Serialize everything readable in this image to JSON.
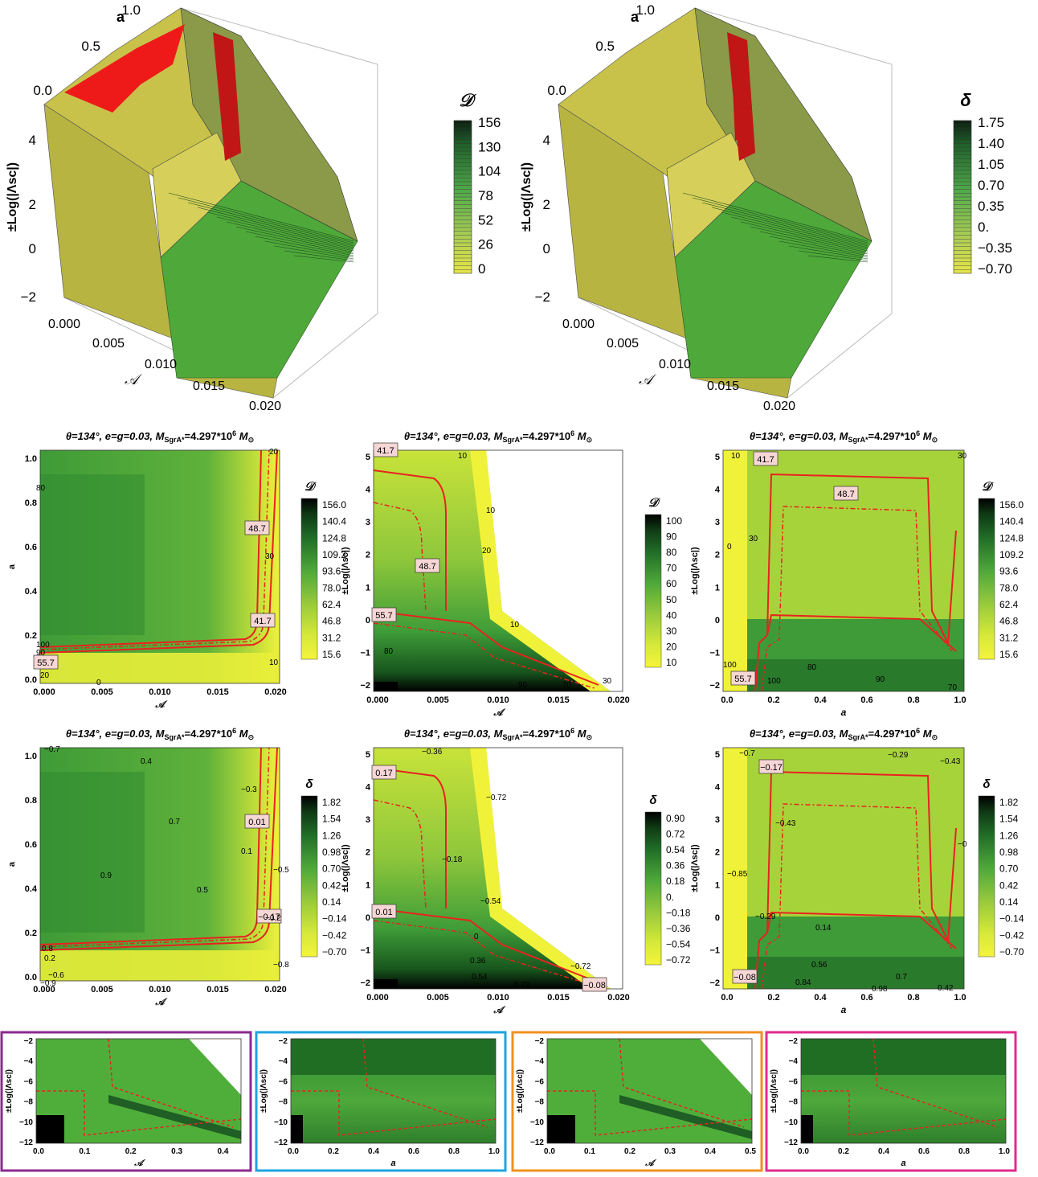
{
  "colors": {
    "yellow": "#f2f23a",
    "lightgreen": "#a7d63a",
    "green": "#4fae3a",
    "darkgreen": "#1f6e24",
    "contour_red": "#e8231f",
    "box_purple": "#8b2a8e",
    "box_cyan": "#1ea4e0",
    "box_orange": "#f0901e",
    "box_magenta": "#e02a8c",
    "label_bg": "#f7d6d6"
  },
  "chart_data": [
    {
      "id": "p3d_D",
      "type": "surface3d",
      "axis_labels": {
        "a": "a",
        "z": "±Log(|Λsc|)",
        "x": "𝒜"
      },
      "a_ticks": [
        "1.0",
        "0.5",
        "0.0"
      ],
      "z_ticks": [
        "4",
        "2",
        "0",
        "−2"
      ],
      "x_ticks": [
        "0.000",
        "0.005",
        "0.010",
        "0.015",
        "0.020"
      ],
      "legend_title": "𝒟",
      "legend_ticks": [
        "156",
        "130",
        "104",
        "78",
        "52",
        "26",
        "0"
      ]
    },
    {
      "id": "p3d_delta",
      "type": "surface3d",
      "axis_labels": {
        "a": "a",
        "z": "±Log(|Λsc|)",
        "x": "𝒜"
      },
      "a_ticks": [
        "1.0",
        "0.5",
        "0.0"
      ],
      "z_ticks": [
        "4",
        "2",
        "0",
        "−2"
      ],
      "x_ticks": [
        "0.000",
        "0.005",
        "0.010",
        "0.015",
        "0.020"
      ],
      "legend_title": "δ",
      "legend_ticks": [
        "1.75",
        "1.40",
        "1.05",
        "0.70",
        "0.35",
        "0.",
        "−0.35",
        "−0.70"
      ]
    },
    {
      "id": "c1",
      "type": "heatmap",
      "title": "θ=134°, e=g=0.03, M",
      "title_sub": "SgrA*",
      "title_rest": "=4.297*10",
      "title_sup": "6",
      "title_end": "M",
      "title_sun": "⊙",
      "xlabel": "𝒜",
      "ylabel": "a",
      "xticks": [
        "0.000",
        "0.005",
        "0.010",
        "0.015",
        "0.020"
      ],
      "yticks": [
        "0.0",
        "0.2",
        "0.4",
        "0.6",
        "0.8",
        "1.0"
      ],
      "legend_title": "𝒟",
      "legend_ticks": [
        "156.0",
        "140.4",
        "124.8",
        "109.2",
        "93.6",
        "78.0",
        "62.4",
        "46.8",
        "31.2",
        "15.6"
      ],
      "contour_labels": [
        "48.7",
        "41.7",
        "55.7"
      ],
      "plain_labels": [
        "80",
        "20",
        "30",
        "10",
        "20",
        "0",
        "100",
        "90"
      ]
    },
    {
      "id": "c2",
      "type": "heatmap",
      "title": "θ=134°, e=g=0.03, M",
      "title_sub": "SgrA*",
      "title_rest": "=4.297*10",
      "title_sup": "6",
      "title_end": "M",
      "title_sun": "⊙",
      "xlabel": "𝒜",
      "ylabel": "±Log(|Λsc|)",
      "xticks": [
        "0.000",
        "0.005",
        "0.010",
        "0.015",
        "0.020"
      ],
      "yticks": [
        "−2",
        "−1",
        "0",
        "1",
        "2",
        "3",
        "4",
        "5"
      ],
      "legend_title": "𝒟",
      "legend_ticks": [
        "100",
        "90",
        "80",
        "70",
        "60",
        "50",
        "40",
        "30",
        "20",
        "10"
      ],
      "contour_labels": [
        "41.7",
        "48.7",
        "55.7"
      ],
      "plain_labels": [
        "10",
        "10",
        "20",
        "10",
        "80",
        "90",
        "70",
        "30"
      ]
    },
    {
      "id": "c3",
      "type": "heatmap",
      "title": "θ=134°, e=g=0.03, M",
      "title_sub": "SgrA*",
      "title_rest": "=4.297*10",
      "title_sup": "6",
      "title_end": "M",
      "title_sun": "⊙",
      "xlabel": "a",
      "ylabel": "±Log(|Λsc|)",
      "xticks": [
        "0.0",
        "0.2",
        "0.4",
        "0.6",
        "0.8",
        "1.0"
      ],
      "yticks": [
        "−2",
        "−1",
        "0",
        "1",
        "2",
        "3",
        "4",
        "5"
      ],
      "legend_title": "𝒟",
      "legend_ticks": [
        "156.0",
        "140.4",
        "124.8",
        "109.2",
        "93.6",
        "78.0",
        "62.4",
        "46.8",
        "31.2",
        "15.6"
      ],
      "contour_labels": [
        "41.7",
        "48.7",
        "55.7"
      ],
      "plain_labels": [
        "10",
        "30",
        "0",
        "30",
        "80",
        "100",
        "90",
        "100",
        "70"
      ]
    },
    {
      "id": "c4",
      "type": "heatmap",
      "title": "θ=134°, e=g=0.03, M",
      "title_sub": "SgrA*",
      "title_rest": "=4.297*10",
      "title_sup": "6",
      "title_end": "M",
      "title_sun": "⊙",
      "xlabel": "𝒜",
      "ylabel": "a",
      "xticks": [
        "0.000",
        "0.005",
        "0.010",
        "0.015",
        "0.020"
      ],
      "yticks": [
        "0.0",
        "0.2",
        "0.4",
        "0.6",
        "0.8",
        "1.0"
      ],
      "legend_title": "δ",
      "legend_ticks": [
        "1.82",
        "1.54",
        "1.26",
        "0.98",
        "0.70",
        "0.42",
        "0.14",
        "−0.14",
        "−0.42",
        "−0.70"
      ],
      "contour_labels": [
        "0.01",
        "−0.17"
      ],
      "plain_labels": [
        "0.4",
        "0.7",
        "0.9",
        "0.5",
        "0.1",
        "−0.3",
        "−0.5",
        "−0.2",
        "−0.8",
        "0.2",
        "−0.6",
        "−0.9",
        "0.8",
        "−0.7"
      ]
    },
    {
      "id": "c5",
      "type": "heatmap",
      "title": "θ=134°, e=g=0.03, M",
      "title_sub": "SgrA*",
      "title_rest": "=4.297*10",
      "title_sup": "6",
      "title_end": "M",
      "title_sun": "⊙",
      "xlabel": "𝒜",
      "ylabel": "±Log(|Λsc|)",
      "xticks": [
        "0.000",
        "0.005",
        "0.010",
        "0.015",
        "0.020"
      ],
      "yticks": [
        "−2",
        "−1",
        "0",
        "1",
        "2",
        "3",
        "4",
        "5"
      ],
      "legend_title": "δ",
      "legend_ticks": [
        "0.90",
        "0.72",
        "0.54",
        "0.36",
        "0.18",
        "0.",
        "−0.18",
        "−0.36",
        "−0.54",
        "−0.72"
      ],
      "contour_labels": [
        "0.17",
        "0.01",
        "−0.08"
      ],
      "plain_labels": [
        "−0.36",
        "−0.72",
        "−0.18",
        "−0.54",
        "0",
        "0.36",
        "0.54",
        "0.72",
        "−0.72"
      ]
    },
    {
      "id": "c6",
      "type": "heatmap",
      "title": "θ=134°, e=g=0.03, M",
      "title_sub": "SgrA*",
      "title_rest": "=4.297*10",
      "title_sup": "6",
      "title_end": "M",
      "title_sun": "⊙",
      "xlabel": "a",
      "ylabel": "±Log(|Λsc|)",
      "xticks": [
        "0.0",
        "0.2",
        "0.4",
        "0.6",
        "0.8",
        "1.0"
      ],
      "yticks": [
        "−2",
        "−1",
        "0",
        "1",
        "2",
        "3",
        "4",
        "5"
      ],
      "legend_title": "δ",
      "legend_ticks": [
        "1.82",
        "1.54",
        "1.26",
        "0.98",
        "0.70",
        "0.42",
        "0.14",
        "−0.14",
        "−0.42",
        "−0.70"
      ],
      "contour_labels": [
        "−0.17",
        "−0.08"
      ],
      "plain_labels": [
        "−0.7",
        "−0.29",
        "−0.43",
        "−0.43",
        "−0.85",
        "−0.29",
        "0.14",
        "0.56",
        "0.84",
        "0.98",
        "0.7",
        "0.42",
        "−0"
      ]
    },
    {
      "id": "z1",
      "type": "heatmap",
      "xlabel": "𝒜",
      "ylabel": "±Log(|Λsc|)",
      "xticks": [
        "0.0",
        "0.1",
        "0.2",
        "0.3",
        "0.4"
      ],
      "yticks": [
        "−2",
        "−4",
        "−6",
        "−8",
        "−10",
        "−12"
      ]
    },
    {
      "id": "z2",
      "type": "heatmap",
      "xlabel": "a",
      "ylabel": "±Log(|Λsc|)",
      "xticks": [
        "0.0",
        "0.2",
        "0.4",
        "0.6",
        "0.8",
        "1.0"
      ],
      "yticks": [
        "−2",
        "−4",
        "−6",
        "−8",
        "−10",
        "−12"
      ]
    },
    {
      "id": "z3",
      "type": "heatmap",
      "xlabel": "𝒜",
      "ylabel": "±Log(|Λsc|)",
      "xticks": [
        "0.0",
        "0.1",
        "0.2",
        "0.3",
        "0.4",
        "0.5"
      ],
      "yticks": [
        "−2",
        "−4",
        "−6",
        "−8",
        "−10",
        "−12"
      ]
    },
    {
      "id": "z4",
      "type": "heatmap",
      "xlabel": "a",
      "ylabel": "±Log(|Λsc|)",
      "xticks": [
        "0.0",
        "0.2",
        "0.4",
        "0.6",
        "0.8",
        "1.0"
      ],
      "yticks": [
        "−2",
        "−4",
        "−6",
        "−8",
        "−10",
        "−12"
      ]
    }
  ]
}
